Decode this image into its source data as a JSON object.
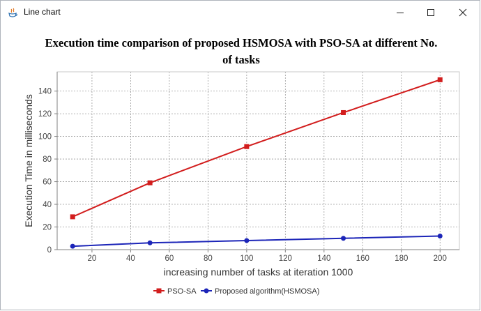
{
  "window": {
    "title": "Line chart",
    "controls": {
      "minimize_icon": "minimize-icon",
      "maximize_icon": "maximize-icon",
      "close_icon": "close-icon"
    }
  },
  "colors": {
    "series_pso_sa": "#d21d1d",
    "series_hsmosa": "#1c25b8",
    "plot_background": "#ffffff",
    "grid": "#9a9a9a"
  },
  "chart_data": {
    "type": "line",
    "title": "Execution time comparison of proposed HSMOSA with PSO-SA at different No. of tasks",
    "title_lines": [
      "Execution time comparison of proposed HSMOSA with PSO-SA at different No.",
      "of tasks"
    ],
    "xlabel": "increasing number of tasks at iteration 1000",
    "ylabel": "Execution Time in milliseconds",
    "xlim": [
      2,
      210
    ],
    "ylim": [
      0,
      157
    ],
    "xticks": [
      20,
      40,
      60,
      80,
      100,
      120,
      140,
      160,
      180,
      200
    ],
    "yticks": [
      0,
      20,
      40,
      60,
      80,
      100,
      120,
      140
    ],
    "grid": true,
    "legend_position": "bottom",
    "series": [
      {
        "name": "PSO-SA",
        "marker": "square",
        "color": "#d21d1d",
        "x": [
          10,
          50,
          100,
          150,
          200
        ],
        "y": [
          29,
          59,
          91,
          121,
          150
        ]
      },
      {
        "name": "Proposed algorithm(HSMOSA)",
        "marker": "circle",
        "color": "#1c25b8",
        "x": [
          10,
          50,
          100,
          150,
          200
        ],
        "y": [
          3,
          6,
          8,
          10,
          12
        ]
      }
    ]
  }
}
